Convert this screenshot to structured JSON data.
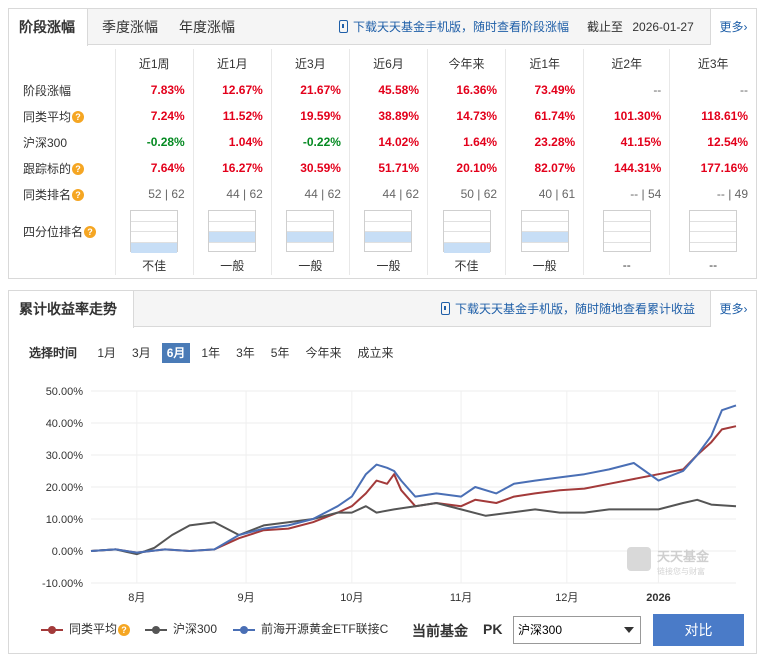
{
  "perf": {
    "tabs": [
      "阶段涨幅",
      "季度涨幅",
      "年度涨幅"
    ],
    "download_text": "下载天天基金手机版，随时查看阶段涨幅",
    "cutoff": "截止至",
    "cutoff_date": "2026-01-27",
    "more": "更多",
    "columns": [
      "近1周",
      "近1月",
      "近3月",
      "近6月",
      "今年来",
      "近1年",
      "近2年",
      "近3年"
    ],
    "rows": [
      {
        "label": "阶段涨幅",
        "help": false,
        "values": [
          {
            "v": "7.83%",
            "c": "red"
          },
          {
            "v": "12.67%",
            "c": "red"
          },
          {
            "v": "21.67%",
            "c": "red"
          },
          {
            "v": "45.58%",
            "c": "red"
          },
          {
            "v": "16.36%",
            "c": "red"
          },
          {
            "v": "73.49%",
            "c": "red"
          },
          {
            "v": "--",
            "c": "gray"
          },
          {
            "v": "--",
            "c": "gray"
          }
        ]
      },
      {
        "label": "同类平均",
        "help": true,
        "values": [
          {
            "v": "7.24%",
            "c": "red"
          },
          {
            "v": "11.52%",
            "c": "red"
          },
          {
            "v": "19.59%",
            "c": "red"
          },
          {
            "v": "38.89%",
            "c": "red"
          },
          {
            "v": "14.73%",
            "c": "red"
          },
          {
            "v": "61.74%",
            "c": "red"
          },
          {
            "v": "101.30%",
            "c": "red"
          },
          {
            "v": "118.61%",
            "c": "red"
          }
        ]
      },
      {
        "label": "沪深300",
        "help": false,
        "values": [
          {
            "v": "-0.28%",
            "c": "green"
          },
          {
            "v": "1.04%",
            "c": "red"
          },
          {
            "v": "-0.22%",
            "c": "green"
          },
          {
            "v": "14.02%",
            "c": "red"
          },
          {
            "v": "1.64%",
            "c": "red"
          },
          {
            "v": "23.28%",
            "c": "red"
          },
          {
            "v": "41.15%",
            "c": "red"
          },
          {
            "v": "12.54%",
            "c": "red"
          }
        ]
      },
      {
        "label": "跟踪标的",
        "help": true,
        "values": [
          {
            "v": "7.64%",
            "c": "red"
          },
          {
            "v": "16.27%",
            "c": "red"
          },
          {
            "v": "30.59%",
            "c": "red"
          },
          {
            "v": "51.71%",
            "c": "red"
          },
          {
            "v": "20.10%",
            "c": "red"
          },
          {
            "v": "82.07%",
            "c": "red"
          },
          {
            "v": "144.31%",
            "c": "red"
          },
          {
            "v": "177.16%",
            "c": "red"
          }
        ]
      },
      {
        "label": "同类排名",
        "help": true,
        "values": [
          {
            "v": "52 | 62",
            "c": "gray"
          },
          {
            "v": "44 | 62",
            "c": "gray"
          },
          {
            "v": "44 | 62",
            "c": "gray"
          },
          {
            "v": "44 | 62",
            "c": "gray"
          },
          {
            "v": "50 | 62",
            "c": "gray"
          },
          {
            "v": "40 | 61",
            "c": "gray"
          },
          {
            "v": "-- | 54",
            "c": "gray"
          },
          {
            "v": "-- | 49",
            "c": "gray"
          }
        ]
      }
    ],
    "quartile_label": "四分位排名",
    "quartile_level": [
      4,
      3,
      3,
      3,
      4,
      3,
      0,
      0
    ],
    "quartile_text": [
      "不佳",
      "一般",
      "一般",
      "一般",
      "不佳",
      "一般",
      "--",
      "--"
    ]
  },
  "trend": {
    "title": "累计收益率走势",
    "download_text": "下载天天基金手机版，随时随地查看累计收益",
    "more": "更多",
    "select_label": "选择时间",
    "ranges": [
      "1月",
      "3月",
      "6月",
      "1年",
      "3年",
      "5年",
      "今年来",
      "成立来"
    ],
    "active_range": "6月",
    "watermark": "天天基金",
    "watermark_sub": "链接您与财富",
    "legend": [
      "同类平均",
      "沪深300",
      "前海开源黄金ETF联接C"
    ],
    "current_fund_label": "当前基金",
    "pk_label": "PK",
    "select_value": "沪深300",
    "compare_button": "对比"
  },
  "chart_data": {
    "type": "line",
    "y_ticks": [
      "50.00%",
      "40.00%",
      "30.00%",
      "20.00%",
      "10.00%",
      "0.00%",
      "-10.00%"
    ],
    "ylim": [
      -10,
      50
    ],
    "x_ticks": [
      "8月",
      "9月",
      "10月",
      "11月",
      "12月",
      "2026"
    ],
    "x_range": [
      "2025-07-28",
      "2026-01-27"
    ],
    "grid": true,
    "series": [
      {
        "name": "同类平均",
        "color": "#a33a3a",
        "x": [
          "2025-07-28",
          "2025-08-04",
          "2025-08-10",
          "2025-08-18",
          "2025-08-25",
          "2025-09-01",
          "2025-09-08",
          "2025-09-15",
          "2025-09-22",
          "2025-09-29",
          "2025-10-06",
          "2025-10-10",
          "2025-10-14",
          "2025-10-17",
          "2025-10-20",
          "2025-10-22",
          "2025-10-24",
          "2025-10-28",
          "2025-11-03",
          "2025-11-10",
          "2025-11-14",
          "2025-11-20",
          "2025-11-25",
          "2025-12-01",
          "2025-12-08",
          "2025-12-15",
          "2025-12-22",
          "2025-12-29",
          "2026-01-05",
          "2026-01-12",
          "2026-01-16",
          "2026-01-20",
          "2026-01-23",
          "2026-01-27"
        ],
        "y": [
          0,
          0.5,
          -0.5,
          0.5,
          0,
          0.5,
          4,
          6.5,
          7,
          9,
          12,
          14,
          18,
          22,
          21,
          24,
          19,
          14,
          15,
          14,
          16,
          15,
          17,
          18,
          19,
          19.5,
          21,
          22.5,
          24,
          25.5,
          30,
          34,
          38,
          39
        ]
      },
      {
        "name": "沪深300",
        "color": "#555555",
        "x": [
          "2025-07-28",
          "2025-08-04",
          "2025-08-10",
          "2025-08-15",
          "2025-08-20",
          "2025-08-25",
          "2025-09-01",
          "2025-09-08",
          "2025-09-15",
          "2025-09-22",
          "2025-09-29",
          "2025-10-06",
          "2025-10-10",
          "2025-10-14",
          "2025-10-17",
          "2025-10-22",
          "2025-10-28",
          "2025-11-03",
          "2025-11-10",
          "2025-11-17",
          "2025-11-24",
          "2025-12-01",
          "2025-12-08",
          "2025-12-15",
          "2025-12-22",
          "2025-12-29",
          "2026-01-05",
          "2026-01-12",
          "2026-01-16",
          "2026-01-20",
          "2026-01-27"
        ],
        "y": [
          0,
          0.5,
          -1,
          1,
          5,
          8,
          9,
          5,
          8,
          9,
          10,
          12,
          12,
          14,
          12,
          13,
          14,
          15,
          13,
          11,
          12,
          13,
          12,
          12,
          13,
          13,
          13,
          15,
          16,
          14.5,
          14
        ]
      },
      {
        "name": "前海开源黄金ETF联接C",
        "color": "#4a6fb5",
        "x": [
          "2025-07-28",
          "2025-08-04",
          "2025-08-10",
          "2025-08-18",
          "2025-08-25",
          "2025-09-01",
          "2025-09-08",
          "2025-09-15",
          "2025-09-22",
          "2025-09-29",
          "2025-10-06",
          "2025-10-10",
          "2025-10-14",
          "2025-10-17",
          "2025-10-20",
          "2025-10-22",
          "2025-10-24",
          "2025-10-28",
          "2025-11-03",
          "2025-11-10",
          "2025-11-14",
          "2025-11-20",
          "2025-11-25",
          "2025-12-01",
          "2025-12-08",
          "2025-12-15",
          "2025-12-22",
          "2025-12-29",
          "2026-01-05",
          "2026-01-12",
          "2026-01-16",
          "2026-01-20",
          "2026-01-23",
          "2026-01-27"
        ],
        "y": [
          0,
          0.5,
          -0.5,
          0.5,
          0,
          0.5,
          5,
          7,
          8,
          10,
          14,
          17,
          24,
          27,
          26,
          25,
          22,
          17,
          18,
          17,
          20,
          18,
          21,
          22,
          23,
          24,
          25.5,
          27.5,
          22,
          25,
          30,
          36,
          44,
          45.5
        ]
      }
    ]
  }
}
